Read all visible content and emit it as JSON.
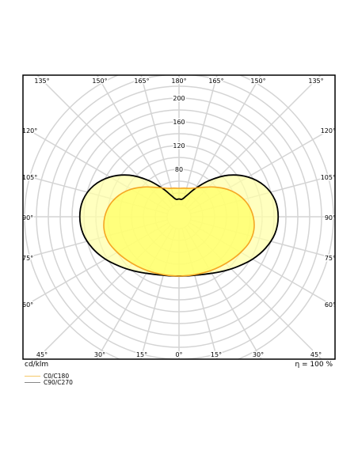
{
  "chart_data": {
    "type": "polar",
    "units_label": "cd/klm",
    "efficiency_label": "η = 100 %",
    "radial_ticks": [
      "80",
      "120",
      "160",
      "200"
    ],
    "radial_values": [
      80,
      120,
      160,
      200
    ],
    "rmax": 200,
    "angle_labels_top": [
      "135°",
      "150°",
      "165°",
      "180°",
      "165°",
      "150°",
      "135°"
    ],
    "angle_labels_left": [
      "120°",
      "105°",
      "90°",
      "75°",
      "60°"
    ],
    "angle_labels_right": [
      "120°",
      "105°",
      "90°",
      "75°",
      "60°"
    ],
    "angle_labels_bottom": [
      "45°",
      "30°",
      "15°",
      "0°",
      "15°",
      "30°",
      "45°"
    ],
    "grid": true,
    "series": [
      {
        "name": "C0/C180",
        "color": "#f5a623",
        "fill": "#ffff66",
        "angles_deg": [
          0,
          10,
          20,
          30,
          40,
          50,
          60,
          70,
          80,
          90,
          100,
          110,
          120,
          130,
          140,
          150,
          160,
          170,
          180
        ],
        "values": [
          100,
          100.5,
          102,
          105,
          109,
          114,
          120,
          126,
          128,
          125,
          118,
          107,
          93,
          78,
          65,
          56,
          51,
          49,
          48
        ]
      },
      {
        "name": "C90/C270",
        "color": "#000000",
        "fill": "#ffffaa",
        "angles_deg": [
          0,
          10,
          20,
          30,
          40,
          50,
          60,
          70,
          80,
          90,
          100,
          110,
          120,
          130,
          140,
          150,
          160,
          170,
          180
        ],
        "values": [
          100,
          101,
          104,
          110,
          119,
          130,
          143,
          155,
          164,
          167,
          164,
          153,
          134,
          109,
          80,
          55,
          38,
          30,
          30
        ]
      }
    ]
  }
}
